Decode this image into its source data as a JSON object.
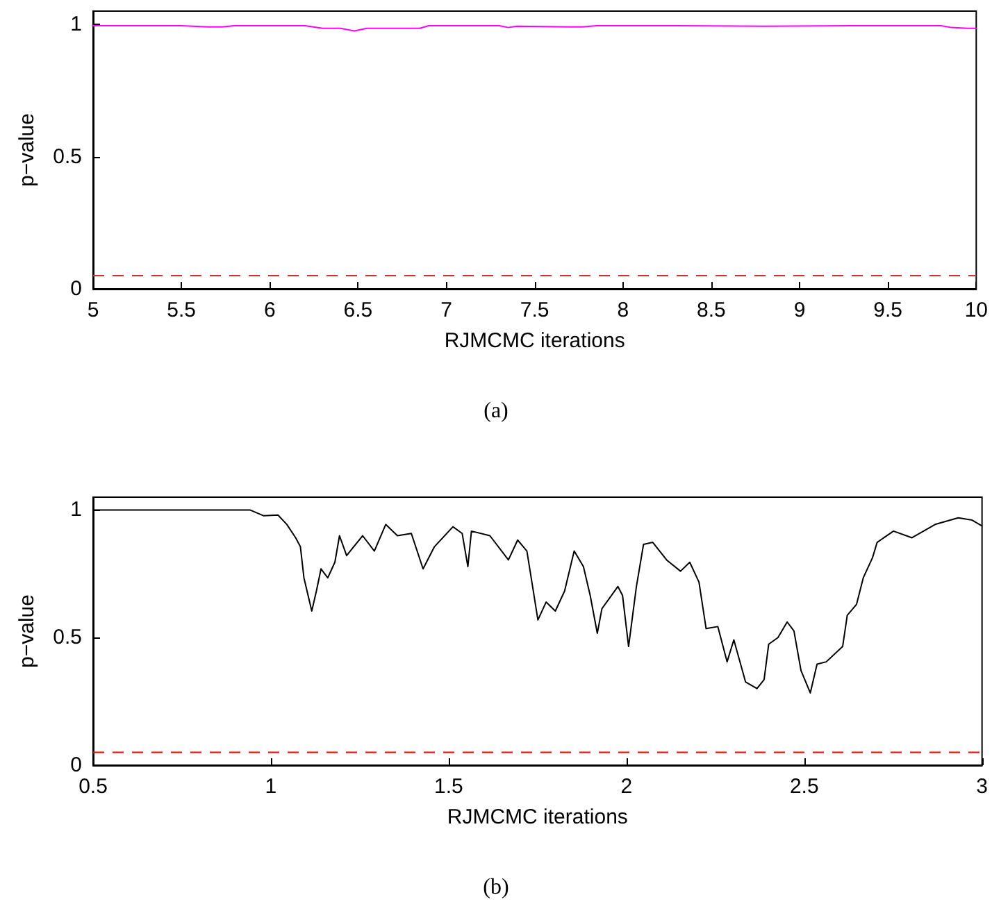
{
  "chart_data": [
    {
      "type": "line",
      "xlabel": "RJMCMC iterations",
      "ylabel": "p−value",
      "annotations": [
        "(a)"
      ],
      "xlim": [
        5,
        10
      ],
      "xticks": [
        5,
        5.5,
        6,
        6.5,
        7,
        7.5,
        8,
        8.5,
        9,
        9.5,
        10
      ],
      "ylim": [
        0,
        1.05
      ],
      "yticks": [
        0,
        0.5,
        1
      ],
      "grid": false,
      "marker": "none",
      "line_style": "solid",
      "series": [
        {
          "color": "#ff00ff",
          "x": [
            5,
            5.5,
            5.65,
            5.73,
            5.8,
            6.2,
            6.3,
            6.4,
            6.48,
            6.55,
            6.65,
            6.85,
            6.9,
            7.3,
            7.35,
            7.4,
            7.7,
            7.77,
            7.85,
            8.3,
            8.8,
            9.3,
            9.8,
            9.86,
            9.95,
            10
          ],
          "values": [
            0.995,
            0.995,
            0.99,
            0.99,
            0.995,
            0.995,
            0.985,
            0.985,
            0.975,
            0.985,
            0.985,
            0.985,
            0.995,
            0.995,
            0.988,
            0.993,
            0.99,
            0.99,
            0.995,
            0.995,
            0.993,
            0.995,
            0.995,
            0.988,
            0.985,
            0.985
          ]
        }
      ],
      "ref_lines": [
        {
          "axis": "y",
          "value": 0.05,
          "color": "#cc3333",
          "line_style": "dashed"
        }
      ]
    },
    {
      "type": "line",
      "xlabel": "RJMCMC iterations",
      "ylabel": "p−value",
      "annotations": [
        "(b)"
      ],
      "xlim": [
        0.5,
        3
      ],
      "xticks": [
        0.5,
        1,
        1.5,
        2,
        2.5,
        3
      ],
      "ylim": [
        0,
        1.05
      ],
      "yticks": [
        0,
        0.5,
        1
      ],
      "grid": false,
      "marker": "none",
      "line_style": "solid",
      "series": [
        {
          "color": "#000000",
          "x": [
            0.5,
            0.941,
            0.98,
            1.02,
            1.045,
            1.07,
            1.083,
            1.093,
            1.115,
            1.128,
            1.141,
            1.16,
            1.18,
            1.193,
            1.213,
            1.258,
            1.291,
            1.323,
            1.356,
            1.395,
            1.428,
            1.46,
            1.512,
            1.538,
            1.554,
            1.564,
            1.616,
            1.668,
            1.694,
            1.72,
            1.736,
            1.751,
            1.774,
            1.8,
            1.826,
            1.853,
            1.879,
            1.898,
            1.918,
            1.931,
            1.976,
            1.989,
            2.006,
            2.028,
            2.048,
            2.074,
            2.113,
            2.152,
            2.178,
            2.204,
            2.224,
            2.257,
            2.283,
            2.302,
            2.335,
            2.367,
            2.387,
            2.4,
            2.426,
            2.452,
            2.471,
            2.491,
            2.517,
            2.536,
            2.562,
            2.608,
            2.621,
            2.647,
            2.666,
            2.692,
            2.705,
            2.751,
            2.803,
            2.868,
            2.933,
            2.972,
            2.998
          ],
          "values": [
            1.0,
            1.0,
            0.977,
            0.98,
            0.943,
            0.89,
            0.856,
            0.734,
            0.604,
            0.682,
            0.769,
            0.734,
            0.795,
            0.899,
            0.821,
            0.899,
            0.839,
            0.943,
            0.899,
            0.908,
            0.769,
            0.856,
            0.934,
            0.908,
            0.778,
            0.917,
            0.899,
            0.804,
            0.882,
            0.839,
            0.7,
            0.569,
            0.639,
            0.604,
            0.682,
            0.839,
            0.778,
            0.665,
            0.517,
            0.613,
            0.7,
            0.665,
            0.465,
            0.7,
            0.865,
            0.873,
            0.804,
            0.76,
            0.795,
            0.717,
            0.535,
            0.543,
            0.405,
            0.491,
            0.326,
            0.3,
            0.335,
            0.474,
            0.5,
            0.561,
            0.526,
            0.37,
            0.283,
            0.396,
            0.405,
            0.465,
            0.587,
            0.63,
            0.734,
            0.813,
            0.873,
            0.917,
            0.891,
            0.943,
            0.969,
            0.96,
            0.939
          ]
        }
      ],
      "ref_lines": [
        {
          "axis": "y",
          "value": 0.05,
          "color": "#ff0000",
          "line_style": "dashed"
        }
      ]
    }
  ]
}
